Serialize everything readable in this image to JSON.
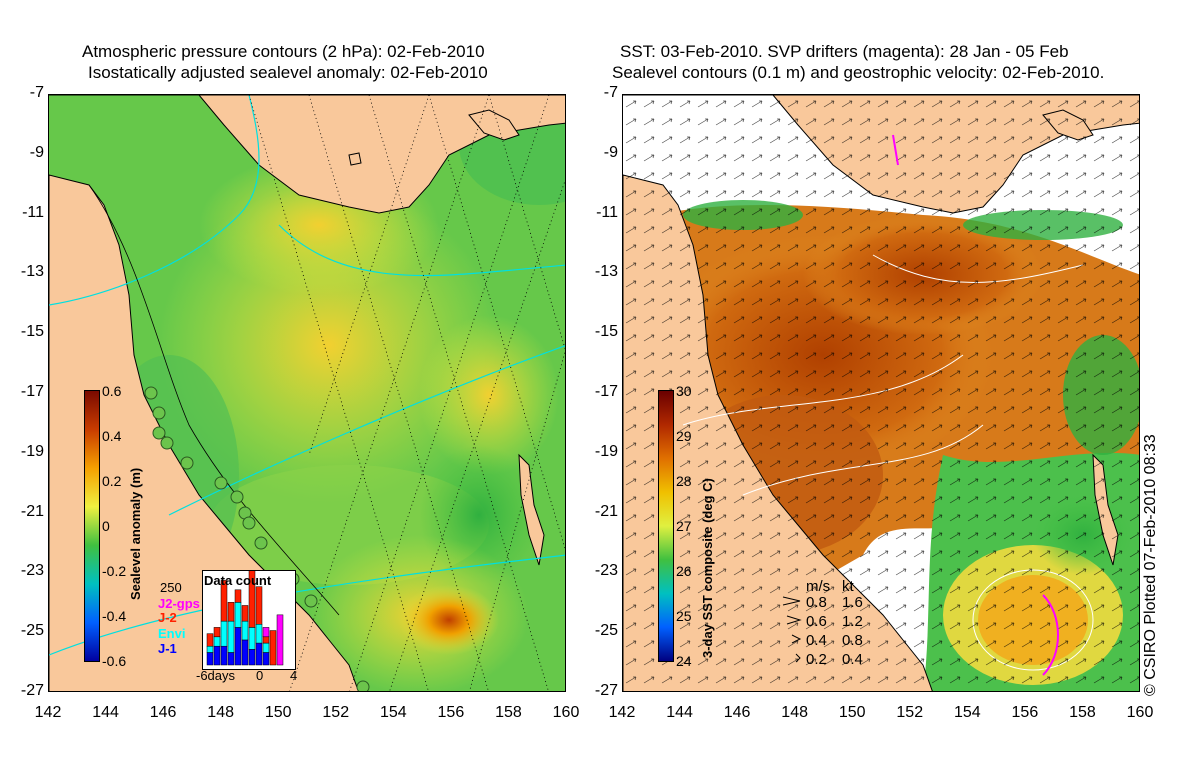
{
  "left_panel": {
    "title_line1": "Atmospheric pressure contours (2 hPa): 02-Feb-2010",
    "title_line2": "Isostatically adjusted sealevel anomaly: 02-Feb-2010",
    "colorbar": {
      "label": "Sealevel anomaly (m)",
      "ticks": [
        "0.6",
        "0.4",
        "0.2",
        "0",
        "-0.2",
        "-0.4",
        "-0.6"
      ],
      "stops": [
        "#7a0a00",
        "#c83c00",
        "#f5a000",
        "#f0f040",
        "#40c040",
        "#00c0c0",
        "#0060ff",
        "#0000a0"
      ]
    },
    "inset": {
      "title": "Data count",
      "y_max_label": "250",
      "x_ticks": [
        "-6days",
        "0",
        "4"
      ],
      "missions": [
        "J2-gps",
        "J-2",
        "Envi",
        "J-1"
      ],
      "mission_colors": [
        "#ff00ff",
        "#ff2000",
        "#00ffff",
        "#0000ff"
      ],
      "bars": [
        {
          "j1": 40,
          "envi": 20,
          "j2": 40,
          "gps": 0
        },
        {
          "j1": 60,
          "envi": 30,
          "j2": 30,
          "gps": 0
        },
        {
          "j1": 60,
          "envi": 80,
          "j2": 130,
          "gps": 0
        },
        {
          "j1": 40,
          "envi": 100,
          "j2": 60,
          "gps": 0
        },
        {
          "j1": 120,
          "envi": 80,
          "j2": 40,
          "gps": 0
        },
        {
          "j1": 80,
          "envi": 60,
          "j2": 50,
          "gps": 0
        },
        {
          "j1": 50,
          "envi": 70,
          "j2": 200,
          "gps": 0
        },
        {
          "j1": 70,
          "envi": 60,
          "j2": 120,
          "gps": 0
        },
        {
          "j1": 40,
          "envi": 30,
          "j2": 20,
          "gps": 30
        },
        {
          "j1": 0,
          "envi": 0,
          "j2": 110,
          "gps": 0
        },
        {
          "j1": 0,
          "envi": 0,
          "j2": 0,
          "gps": 160
        }
      ]
    }
  },
  "right_panel": {
    "title_line1": "SST: 03-Feb-2010. SVP drifters (magenta): 28 Jan - 05 Feb",
    "title_line2": "Sealevel contours (0.1 m) and geostrophic velocity: 02-Feb-2010.",
    "colorbar": {
      "label": "3-day SST composite (deg C)",
      "ticks": [
        "30",
        "29",
        "28",
        "27",
        "26",
        "25",
        "24"
      ],
      "stops": [
        "#6a0000",
        "#b02800",
        "#e07000",
        "#f0c000",
        "#e0f040",
        "#40c040",
        "#00c0c0",
        "#0060ff",
        "#000080"
      ]
    },
    "velocity_legend": {
      "header_ms": "m/s",
      "header_kt": "kt",
      "rows": [
        {
          "ms": "0.8",
          "kt": "1.6"
        },
        {
          "ms": "0.6",
          "kt": "1.2"
        },
        {
          "ms": "0.4",
          "kt": "0.8"
        },
        {
          "ms": "0.2",
          "kt": "0.4"
        }
      ]
    }
  },
  "axes": {
    "x_ticks": [
      "142",
      "144",
      "146",
      "148",
      "150",
      "152",
      "154",
      "156",
      "158",
      "160"
    ],
    "y_ticks": [
      "-7",
      "-9",
      "-11",
      "-13",
      "-15",
      "-17",
      "-19",
      "-21",
      "-23",
      "-25",
      "-27"
    ]
  },
  "copyright": "© CSIRO Plotted 07-Feb-2010 08:33",
  "colors": {
    "land": "#f9c89b",
    "ocean_base": "#5cc84a"
  }
}
